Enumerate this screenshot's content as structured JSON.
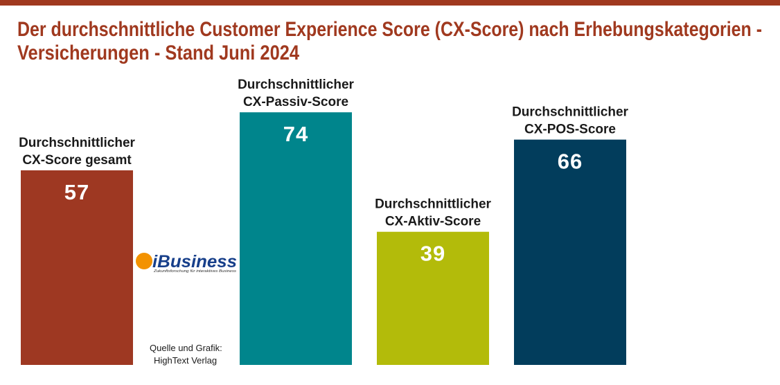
{
  "chart_data": {
    "type": "bar",
    "title": [
      "Der durchschnittliche Customer Experience Score (CX-Score) nach Erhebungskategorien -",
      "Versicherungen - Stand Juni 2024"
    ],
    "categories": [
      [
        "Durchschnittlicher",
        "CX-Score gesamt"
      ],
      [
        "Durchschnittlicher",
        "CX-Passiv-Score"
      ],
      [
        "Durchschnittlicher",
        "CX-Aktiv-Score"
      ],
      [
        "Durchschnittlicher",
        "CX-POS-Score"
      ]
    ],
    "values": [
      57,
      74,
      39,
      66
    ],
    "colors": [
      "#9e3822",
      "#00858c",
      "#b3bb0a",
      "#023d5c"
    ],
    "logo": {
      "text": "iBusiness",
      "tagline": "Zukunftsforschung für interaktives Business"
    },
    "source": [
      "Quelle und Grafik:",
      "HighText Verlag"
    ]
  }
}
